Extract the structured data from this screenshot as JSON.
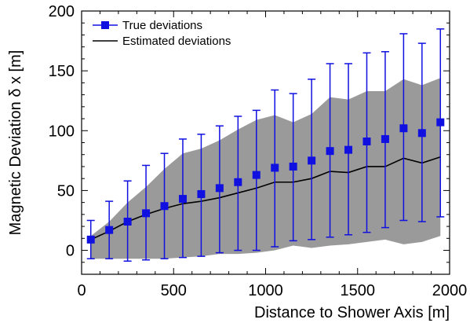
{
  "chart_data": {
    "type": "scatter",
    "xlabel": "Distance to Shower Axis [m]",
    "ylabel": "Magnetic Deviation  δ x [m]",
    "xlim": [
      0,
      2000
    ],
    "ylim": [
      -20,
      200
    ],
    "xticks": [
      0,
      500,
      1000,
      1500,
      2000
    ],
    "yticks": [
      0,
      50,
      100,
      150,
      200
    ],
    "grid": false,
    "legend_position": "top-left",
    "colors": {
      "true": "#1010e0",
      "band": "#9a9a9a",
      "estimated": "#000000"
    },
    "x": [
      50,
      150,
      250,
      350,
      450,
      550,
      650,
      750,
      850,
      950,
      1050,
      1150,
      1250,
      1350,
      1450,
      1550,
      1650,
      1750,
      1850,
      1950
    ],
    "series": [
      {
        "name": "True deviations",
        "marker": "square",
        "values": [
          9,
          17,
          24,
          31,
          37,
          43,
          47,
          52,
          57,
          63,
          69,
          70,
          75,
          83,
          84,
          91,
          93,
          102,
          98,
          107
        ],
        "err_low": [
          -7,
          -7,
          -9,
          -8,
          -7,
          -6,
          -5,
          -2,
          0,
          0,
          3,
          8,
          9,
          11,
          13,
          15,
          19,
          25,
          24,
          28
        ],
        "err_high": [
          25,
          41,
          58,
          71,
          81,
          93,
          97,
          104,
          112,
          117,
          134,
          131,
          143,
          156,
          156,
          165,
          166,
          181,
          173,
          185
        ]
      },
      {
        "name": "Estimated deviations",
        "marker": "line",
        "values": [
          9,
          16,
          24,
          30,
          35,
          39,
          41,
          44,
          48,
          52,
          57,
          57,
          60,
          66,
          65,
          70,
          70,
          77,
          73,
          78
        ],
        "band_low": [
          -7,
          -7,
          -7,
          -7,
          -7,
          -6,
          -5,
          -3,
          -3,
          -2,
          0,
          4,
          2,
          4,
          5,
          7,
          9,
          5,
          7,
          12
        ],
        "band_high": [
          12,
          24,
          40,
          53,
          68,
          81,
          85,
          92,
          101,
          109,
          113,
          107,
          114,
          128,
          126,
          133,
          133,
          143,
          138,
          144
        ]
      }
    ]
  }
}
